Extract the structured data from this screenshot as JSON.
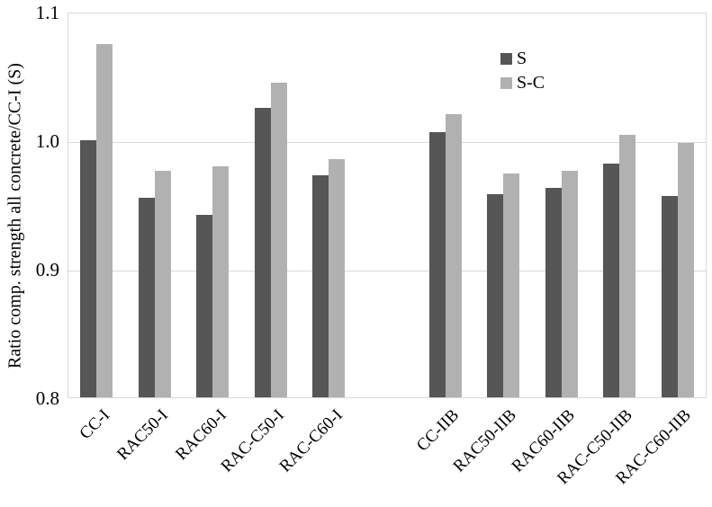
{
  "chart_data": {
    "type": "bar",
    "title": "",
    "xlabel": "",
    "ylabel": "Ratio comp. strength all concrete/CC-I (S)",
    "ylim": [
      0.8,
      1.1
    ],
    "yticks": [
      0.8,
      0.9,
      1.0,
      1.1
    ],
    "ytick_labels": [
      "0.8",
      "0.9",
      "1.0",
      "1.1"
    ],
    "grid": "horizontal",
    "legend_position": "inside-top-right",
    "categories": [
      "CC-I",
      "RAC50-I",
      "RAC60-I",
      "RAC-C50-I",
      "RAC-C60-I",
      "CC-IIB",
      "RAC50-IIB",
      "RAC60-IIB",
      "RAC-C50-IIB",
      "RAC-C60-IIB"
    ],
    "group_gap_after_index": 4,
    "series": [
      {
        "name": "S",
        "color": "#565656",
        "values": [
          1.0,
          0.955,
          0.942,
          1.025,
          0.973,
          1.006,
          0.958,
          0.963,
          0.982,
          0.957
        ]
      },
      {
        "name": "S-C",
        "color": "#b1b1b1",
        "values": [
          1.075,
          0.976,
          0.98,
          1.045,
          0.985,
          1.02,
          0.974,
          0.976,
          1.004,
          0.998
        ]
      }
    ],
    "colors": {
      "gridline": "#d9d9d9",
      "text": "#000000",
      "background": "#ffffff"
    }
  }
}
